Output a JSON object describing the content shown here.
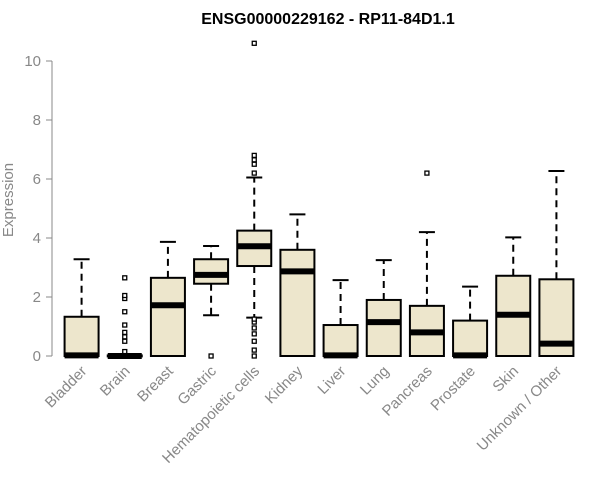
{
  "chart_data": {
    "type": "boxplot",
    "title": "ENSG00000229162 - RP11-84D1.1",
    "ylabel": "Expression",
    "xlabel": "",
    "ylim": [
      0,
      10.6
    ],
    "yticks": [
      0,
      2,
      4,
      6,
      8,
      10
    ],
    "grid": false,
    "box_fill": "#ede6cc",
    "box_stroke": "#000000",
    "categories": [
      "Bladder",
      "Brain",
      "Breast",
      "Gastric",
      "Hematopoietic cells",
      "Kidney",
      "Liver",
      "Lung",
      "Pancreas",
      "Prostate",
      "Skin",
      "Unknown / Other"
    ],
    "boxes": [
      {
        "category": "Bladder",
        "min": 0,
        "q1": 0,
        "median": 0.02,
        "q3": 1.33,
        "max": 3.28,
        "outliers": []
      },
      {
        "category": "Brain",
        "min": 0,
        "q1": 0,
        "median": 0,
        "q3": 0.02,
        "max": 0.02,
        "outliers": [
          0.15,
          0.5,
          0.65,
          0.8,
          1.05,
          1.5,
          1.95,
          2.05,
          2.65
        ]
      },
      {
        "category": "Breast",
        "min": 0,
        "q1": 0,
        "median": 1.72,
        "q3": 2.65,
        "max": 3.87,
        "outliers": []
      },
      {
        "category": "Gastric",
        "min": 1.38,
        "q1": 2.45,
        "median": 2.75,
        "q3": 3.28,
        "max": 3.73,
        "outliers": [
          0
        ]
      },
      {
        "category": "Hematopoietic cells",
        "min": 1.3,
        "q1": 3.05,
        "median": 3.72,
        "q3": 4.25,
        "max": 6.05,
        "outliers": [
          0,
          0.2,
          0.5,
          0.75,
          0.95,
          1.15,
          1.25,
          6.2,
          6.5,
          6.65,
          6.8,
          10.6
        ]
      },
      {
        "category": "Kidney",
        "min": 0,
        "q1": 0,
        "median": 2.87,
        "q3": 3.6,
        "max": 4.8,
        "outliers": []
      },
      {
        "category": "Liver",
        "min": 0,
        "q1": 0,
        "median": 0.02,
        "q3": 1.05,
        "max": 2.57,
        "outliers": []
      },
      {
        "category": "Lung",
        "min": 0,
        "q1": 0,
        "median": 1.15,
        "q3": 1.9,
        "max": 3.25,
        "outliers": []
      },
      {
        "category": "Pancreas",
        "min": 0,
        "q1": 0,
        "median": 0.8,
        "q3": 1.7,
        "max": 4.2,
        "outliers": [
          6.2
        ]
      },
      {
        "category": "Prostate",
        "min": 0,
        "q1": 0,
        "median": 0.02,
        "q3": 1.2,
        "max": 2.35,
        "outliers": []
      },
      {
        "category": "Skin",
        "min": 0,
        "q1": 0,
        "median": 1.4,
        "q3": 2.72,
        "max": 4.02,
        "outliers": []
      },
      {
        "category": "Unknown / Other",
        "min": 0,
        "q1": 0,
        "median": 0.42,
        "q3": 2.6,
        "max": 6.27,
        "outliers": []
      }
    ]
  }
}
